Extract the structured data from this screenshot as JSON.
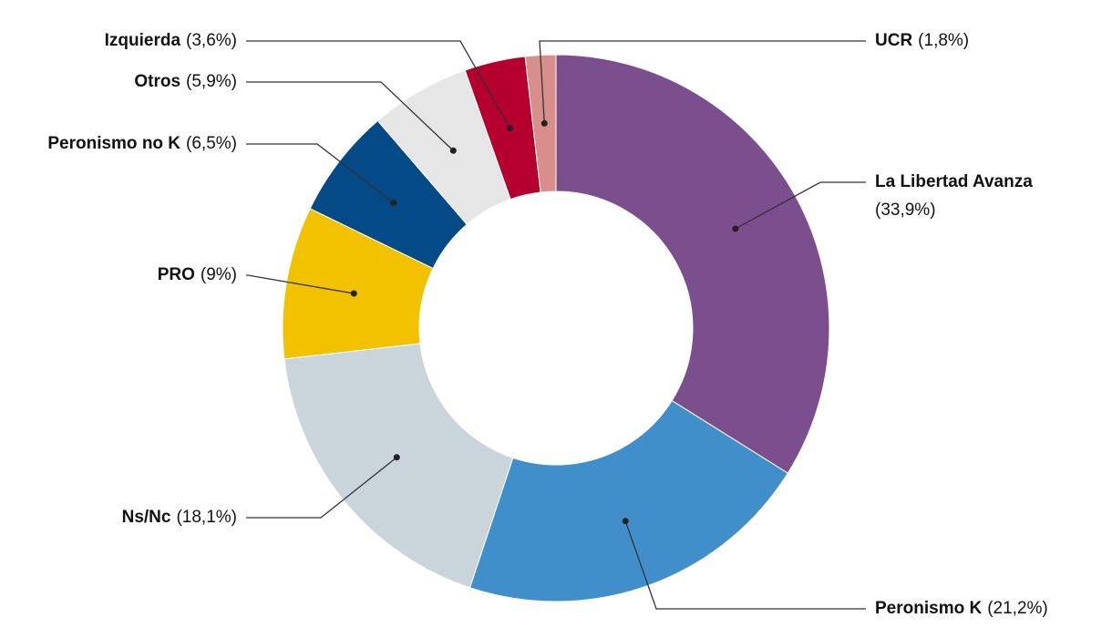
{
  "chart_data": {
    "type": "donut",
    "categories": [
      "La Libertad Avanza",
      "Peronismo K",
      "Ns/Nc",
      "PRO",
      "Peronismo no K",
      "Otros",
      "Izquierda",
      "UCR"
    ],
    "values": [
      33.9,
      21.2,
      18.1,
      9,
      6.5,
      5.9,
      3.6,
      1.8
    ],
    "value_labels": [
      "(33,9%)",
      "(21,2%)",
      "(18,1%)",
      "(9%)",
      "(6,5%)",
      "(5,9%)",
      "(3,6%)",
      "(1,8%)"
    ],
    "colors": [
      "#7b4f8e",
      "#418fca",
      "#c9d4db",
      "#f2c100",
      "#034a87",
      "#e6e6e6",
      "#b5002f",
      "#d88f8c"
    ]
  }
}
